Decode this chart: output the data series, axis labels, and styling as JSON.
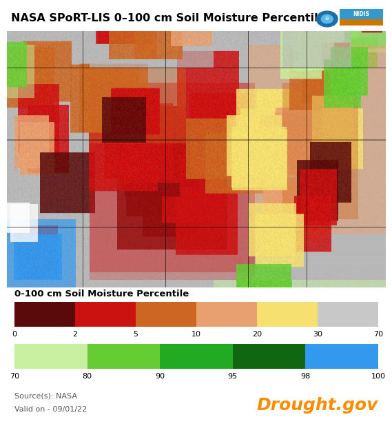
{
  "title": "NASA SPoRT-LIS 0–100 cm Soil Moisture Percentile",
  "title_fontsize": 11.5,
  "title_fontweight": "bold",
  "legend_title": "0-100 cm Soil Moisture Percentile",
  "legend_title_fontsize": 9.5,
  "legend_title_fontweight": "bold",
  "source_text": "Source(s): NASA",
  "valid_text": "Valid on - 09/01/22",
  "drought_text": "Drought.gov",
  "drought_color": "#FF8C00",
  "drought_fontsize": 18,
  "drought_fontweight": "bold",
  "source_fontsize": 8,
  "background_color": "#ffffff",
  "bar1_colors": [
    "#5a0a0a",
    "#cc1111",
    "#cc6622",
    "#e8a070",
    "#f5e070",
    "#c8c8c8"
  ],
  "bar1_labels": [
    "0",
    "2",
    "5",
    "10",
    "20",
    "30",
    "70"
  ],
  "bar2_colors": [
    "#c8f0a0",
    "#66cc33",
    "#22aa22",
    "#116611",
    "#3399ee"
  ],
  "bar2_labels": [
    "70",
    "80",
    "90",
    "95",
    "98",
    "100"
  ],
  "fig_width": 5.5,
  "fig_height": 5.98,
  "map_bg_color": "#b0b0b0",
  "noaa_blue_outer": "#1a6fa8",
  "noaa_blue_inner": "#5cb8e8",
  "noaa_white": "#ffffff",
  "nidis_blue": "#3399cc",
  "nidis_orange": "#cc8800"
}
